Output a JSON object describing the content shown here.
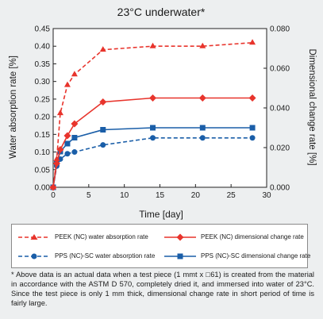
{
  "chart_data": {
    "type": "line",
    "title": "23°C underwater*",
    "xlabel": "Time [day]",
    "ylabel_left": "Water absorption rate [%]",
    "ylabel_right": "Dimensional change rate [%]",
    "xlim": [
      0,
      30
    ],
    "ylim_left": [
      0.0,
      0.45
    ],
    "ylim_right": [
      0.0,
      0.08
    ],
    "x_ticks": [
      "0",
      "5",
      "10",
      "15",
      "20",
      "25",
      "30"
    ],
    "y_left_ticks": [
      "0.00",
      "0.05",
      "0.10",
      "0.15",
      "0.20",
      "0.25",
      "0.30",
      "0.35",
      "0.40",
      "0.45"
    ],
    "y_right_ticks": [
      "0.000",
      "0.020",
      "0.040",
      "0.060",
      "0.080"
    ],
    "grid": false,
    "series": [
      {
        "name": "PEEK (NC) water absorption rate",
        "axis": "left",
        "color": "#e8342c",
        "dash": "dashed",
        "marker": "triangle",
        "x": [
          0,
          0.5,
          1,
          2,
          3,
          7,
          14,
          21,
          28
        ],
        "y": [
          0.0,
          0.08,
          0.21,
          0.29,
          0.32,
          0.39,
          0.4,
          0.4,
          0.41
        ]
      },
      {
        "name": "PEEK (NC) dimensional change rate",
        "axis": "right",
        "color": "#e8342c",
        "dash": "solid",
        "marker": "diamond",
        "x": [
          0,
          0.5,
          1,
          2,
          3,
          7,
          14,
          21,
          28
        ],
        "y": [
          0.0,
          0.012,
          0.019,
          0.026,
          0.032,
          0.043,
          0.045,
          0.045,
          0.045
        ]
      },
      {
        "name": "PPS (NC)-SC water absorption rate",
        "axis": "left",
        "color": "#1a5ea8",
        "dash": "dashed",
        "marker": "circle",
        "x": [
          0,
          0.5,
          1,
          2,
          3,
          7,
          14,
          21,
          28
        ],
        "y": [
          0.0,
          0.06,
          0.08,
          0.095,
          0.1,
          0.12,
          0.14,
          0.14,
          0.14
        ]
      },
      {
        "name": "PPS (NC)-SC dimensional change rate",
        "axis": "right",
        "color": "#1a5ea8",
        "dash": "solid",
        "marker": "square",
        "x": [
          0,
          0.5,
          1,
          2,
          3,
          7,
          14,
          21,
          28
        ],
        "y": [
          0.0,
          0.012,
          0.018,
          0.022,
          0.025,
          0.029,
          0.03,
          0.03,
          0.03
        ]
      }
    ]
  },
  "legend": {
    "items": [
      "PEEK (NC) water absorption rate",
      "PEEK (NC) dimensional change rate",
      "PPS (NC)-SC water absorption rate",
      "PPS (NC)-SC dimensional change rate"
    ]
  },
  "note": "* Above data is an actual data when a test piece (1 mmt x □61) is created from the material in accordance with the ASTM D 570, completely dried it, and immersed into water of 23°C. Since the test piece is only 1 mm thick, dimensional change rate in short period of time is fairly large."
}
